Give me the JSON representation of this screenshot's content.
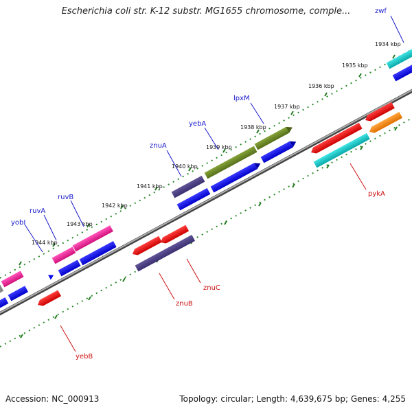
{
  "header": {
    "title": "Escherichia coli str. K-12 substr. MG1655 chromosome, comple..."
  },
  "footer": {
    "accession": "Accession: NC_000913",
    "summary": "Topology: circular; Length: 4,639,675 bp; Genes: 4,255"
  },
  "colors": {
    "backbone": "#808080",
    "tick_dots": "#2a8a2a",
    "forward_label": "#1a1acc",
    "reverse_label": "#cc1111",
    "feature_blue": "#0a0ae8",
    "feature_red": "#ee1111",
    "feature_magenta": "#ee2299",
    "feature_cyan": "#11cccc",
    "feature_olive": "#6a8a22",
    "feature_slate": "#4a3d8a",
    "feature_orange": "#ff8a00"
  },
  "scale": {
    "unit": "kbp",
    "ticks": [
      "1934 kbp",
      "1935 kbp",
      "1936 kbp",
      "1937 kbp",
      "1938 kbp",
      "1939 kbp",
      "1940 kbp",
      "1941 kbp",
      "1942 kbp",
      "1943 kbp",
      "1944 kbp"
    ]
  },
  "genes": {
    "forward": [
      {
        "name": "zwf",
        "color": "#11cccc"
      },
      {
        "name": "lpxM",
        "color": "#6a8a22"
      },
      {
        "name": "yebA",
        "color": "#6a8a22"
      },
      {
        "name": "znuA",
        "color": "#4a3d8a"
      },
      {
        "name": "ruvB",
        "color": "#ee2299"
      },
      {
        "name": "ruvA",
        "color": "#ee2299"
      },
      {
        "name": "yobI",
        "color": "#0a0ae8"
      }
    ],
    "reverse": [
      {
        "name": "pykA",
        "color": "#ee1111"
      },
      {
        "name": "znuC",
        "color": "#ee1111"
      },
      {
        "name": "znuB",
        "color": "#4a3d8a"
      },
      {
        "name": "yebB",
        "color": "#ee1111"
      }
    ]
  }
}
